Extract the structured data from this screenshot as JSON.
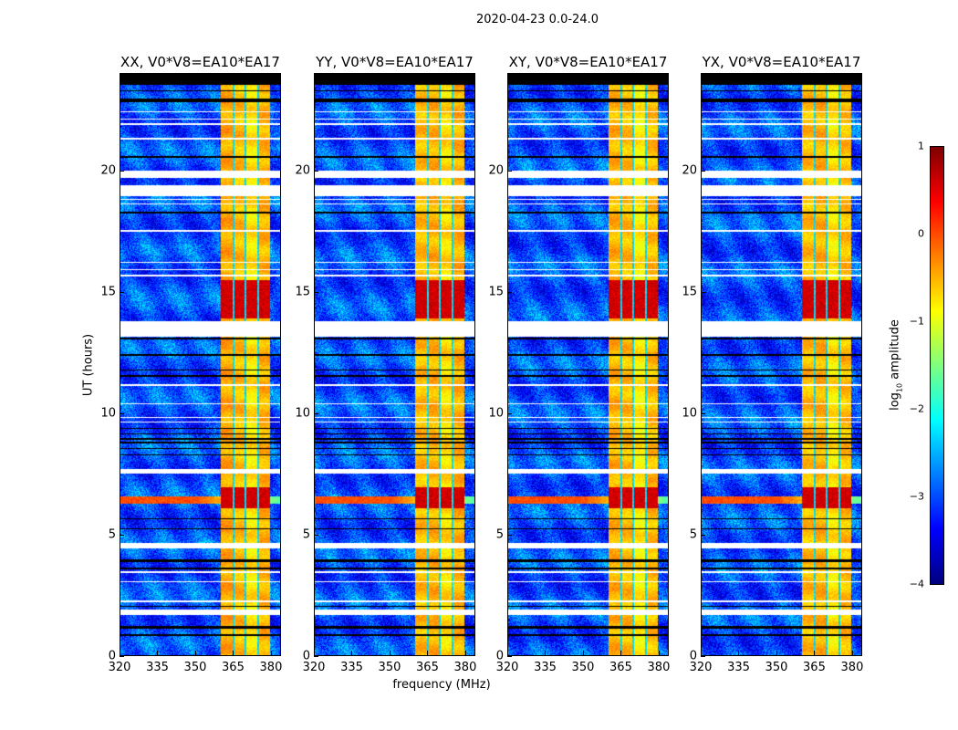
{
  "chart_data": {
    "type": "heatmap",
    "suptitle": "2020-04-23 0.0-24.0",
    "panels": [
      {
        "title": "XX, V0*V8=EA10*EA17"
      },
      {
        "title": "YY, V0*V8=EA10*EA17"
      },
      {
        "title": "XY, V0*V8=EA10*EA17"
      },
      {
        "title": "YX, V0*V8=EA10*EA17"
      }
    ],
    "xlabel": "frequency (MHz)",
    "ylabel": "UT (hours)",
    "xlim": [
      320,
      384
    ],
    "ylim": [
      0,
      24
    ],
    "xticks": [
      "320",
      "335",
      "350",
      "365",
      "380"
    ],
    "xtick_values": [
      320,
      335,
      350,
      365,
      380
    ],
    "yticks": [
      "0",
      "5",
      "10",
      "15",
      "20"
    ],
    "ytick_values": [
      0,
      5,
      10,
      15,
      20
    ],
    "colorbar": {
      "label_prefix": "log",
      "label_sub": "10",
      "label_suffix": " amplitude",
      "range": [
        -4,
        1
      ],
      "ticks": [
        "1",
        "0",
        "−1",
        "−2",
        "−3",
        "−4"
      ],
      "tick_values": [
        1,
        0,
        -1,
        -2,
        -3,
        -4
      ],
      "colormap": "jet"
    },
    "features": {
      "background_log_amplitude": -3.0,
      "rfi_band_mhz": [
        360.3,
        379.8
      ],
      "rfi_band_log_amplitude": -0.6,
      "channel_gaps_mhz": [
        365.3,
        370.2,
        375.3
      ],
      "strong_rfi_intervals_hours": [
        [
          13.9,
          15.5
        ],
        [
          6.05,
          6.95
        ]
      ],
      "strong_rfi_log_amplitude": 0.6,
      "broadband_event_hours": [
        6.25,
        6.55
      ],
      "flagged_white_intervals_hours": [
        [
          19.7,
          20.0
        ],
        [
          19.0,
          19.4
        ],
        [
          13.15,
          13.8
        ],
        [
          7.5,
          7.7
        ],
        [
          4.4,
          4.65
        ],
        [
          1.65,
          1.87
        ],
        [
          11.1,
          11.2
        ],
        [
          18.6,
          18.65
        ],
        [
          18.8,
          18.85
        ],
        [
          18.95,
          19.0
        ],
        [
          21.9,
          21.95
        ],
        [
          22.1,
          22.15
        ],
        [
          22.4,
          22.45
        ],
        [
          21.3,
          21.35
        ],
        [
          16.2,
          16.25
        ],
        [
          15.9,
          15.95
        ],
        [
          17.5,
          17.55
        ],
        [
          15.65,
          15.7
        ],
        [
          10.35,
          10.4
        ],
        [
          9.8,
          9.85
        ],
        [
          9.6,
          9.65
        ],
        [
          3.4,
          3.45
        ],
        [
          3.0,
          3.05
        ],
        [
          2.2,
          2.25
        ]
      ],
      "flagged_black_intervals_hours": [
        [
          23.55,
          24.0
        ],
        [
          22.85,
          22.97
        ],
        [
          23.3,
          23.34
        ],
        [
          20.55,
          20.6
        ],
        [
          18.25,
          18.3
        ],
        [
          13.05,
          13.1
        ],
        [
          12.35,
          12.42
        ],
        [
          11.5,
          11.56
        ],
        [
          11.75,
          11.8
        ],
        [
          9.35,
          9.4
        ],
        [
          9.1,
          9.15
        ],
        [
          8.9,
          8.95
        ],
        [
          8.75,
          8.8
        ],
        [
          8.5,
          8.55
        ],
        [
          8.25,
          8.3
        ],
        [
          5.6,
          5.65
        ],
        [
          5.2,
          5.25
        ],
        [
          3.85,
          3.95
        ],
        [
          3.55,
          3.6
        ],
        [
          2.0,
          2.05
        ],
        [
          1.1,
          1.22
        ],
        [
          0.8,
          0.85
        ]
      ]
    }
  }
}
